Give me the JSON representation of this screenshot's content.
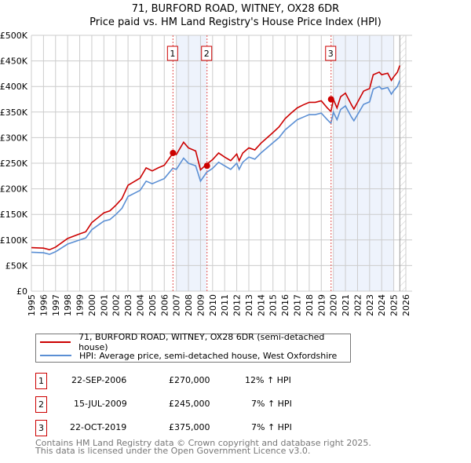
{
  "chart_data": {
    "type": "line",
    "title": "71, BURFORD ROAD, WITNEY, OX28 6DR",
    "subtitle": "Price paid vs. HM Land Registry's House Price Index (HPI)",
    "xlim": [
      1995,
      2026
    ],
    "ylim": [
      0,
      500000
    ],
    "x_ticks": [
      "1995",
      "1996",
      "1997",
      "1998",
      "1999",
      "2000",
      "2001",
      "2002",
      "2003",
      "2004",
      "2005",
      "2006",
      "2007",
      "2008",
      "2009",
      "2010",
      "2011",
      "2012",
      "2013",
      "2014",
      "2015",
      "2016",
      "2017",
      "2018",
      "2019",
      "2020",
      "2021",
      "2022",
      "2023",
      "2024",
      "2025",
      "2026"
    ],
    "y_ticks": [
      "£0",
      "£50K",
      "£100K",
      "£150K",
      "£200K",
      "£250K",
      "£300K",
      "£350K",
      "£400K",
      "£450K",
      "£500K"
    ],
    "grid": true,
    "x": [
      1995,
      1996,
      1996.5,
      1997,
      1998,
      1999,
      1999.5,
      2000,
      2001,
      2001.5,
      2002,
      2002.5,
      2003,
      2004,
      2004.5,
      2005,
      2005.5,
      2006,
      2006.7,
      2007,
      2007.6,
      2008,
      2008.6,
      2009,
      2009.5,
      2010,
      2010.5,
      2011,
      2011.5,
      2012,
      2012.2,
      2012.5,
      2013,
      2013.5,
      2014,
      2015,
      2015.5,
      2016,
      2016.5,
      2017,
      2017.5,
      2018,
      2018.5,
      2019,
      2019.5,
      2019.8,
      2020,
      2020.3,
      2020.6,
      2021,
      2021.5,
      2021.7,
      2022,
      2022.5,
      2023,
      2023.3,
      2023.8,
      2024,
      2024.5,
      2024.8,
      2025,
      2025.3,
      2025.5
    ],
    "series": [
      {
        "name": "71, BURFORD ROAD, WITNEY, OX28 6DR (semi-detached house)",
        "color": "#cc0000",
        "values": [
          85,
          84,
          81,
          86,
          103,
          112,
          116,
          134,
          153,
          157,
          168,
          181,
          207,
          221,
          241,
          235,
          241,
          246,
          269,
          267,
          291,
          280,
          274,
          237,
          248,
          257,
          270,
          262,
          255,
          268,
          255,
          270,
          280,
          276,
          289,
          310,
          321,
          337,
          348,
          358,
          364,
          369,
          369,
          372,
          358,
          351,
          375,
          358,
          380,
          387,
          364,
          356,
          369,
          391,
          396,
          423,
          428,
          423,
          426,
          412,
          419,
          428,
          441
        ]
      },
      {
        "name": "HPI: Average price, semi-detached house, West Oxfordshire",
        "color": "#5b8fd4",
        "values": [
          76,
          75,
          72,
          77,
          92,
          100,
          104,
          120,
          137,
          140,
          150,
          162,
          185,
          197,
          215,
          210,
          215,
          220,
          240,
          238,
          260,
          250,
          245,
          215,
          232,
          240,
          252,
          245,
          238,
          250,
          238,
          252,
          262,
          258,
          270,
          290,
          300,
          315,
          325,
          335,
          340,
          345,
          345,
          348,
          335,
          328,
          350,
          335,
          355,
          362,
          340,
          333,
          345,
          365,
          370,
          395,
          400,
          395,
          398,
          385,
          392,
          400,
          412
        ]
      }
    ],
    "value_unit": "thousand GBP",
    "sales": [
      {
        "id": "1",
        "x": 2006.72,
        "price": 270000,
        "date": "22-SEP-2006",
        "price_label": "£270,000",
        "hpi": "12% ↑ HPI"
      },
      {
        "id": "2",
        "x": 2009.54,
        "price": 245000,
        "date": "15-JUL-2009",
        "price_label": "£245,000",
        "hpi": "7% ↑ HPI"
      },
      {
        "id": "3",
        "x": 2019.81,
        "price": 375000,
        "date": "22-OCT-2019",
        "price_label": "£375,000",
        "hpi": "7% ↑ HPI"
      }
    ],
    "shaded": [
      [
        2007,
        2009.5
      ],
      [
        2020,
        2025
      ]
    ],
    "hatched_from": 2025.5,
    "legend_position": "below"
  },
  "footer": [
    "Contains HM Land Registry data © Crown copyright and database right 2025.",
    "This data is licensed under the Open Government Licence v3.0."
  ]
}
